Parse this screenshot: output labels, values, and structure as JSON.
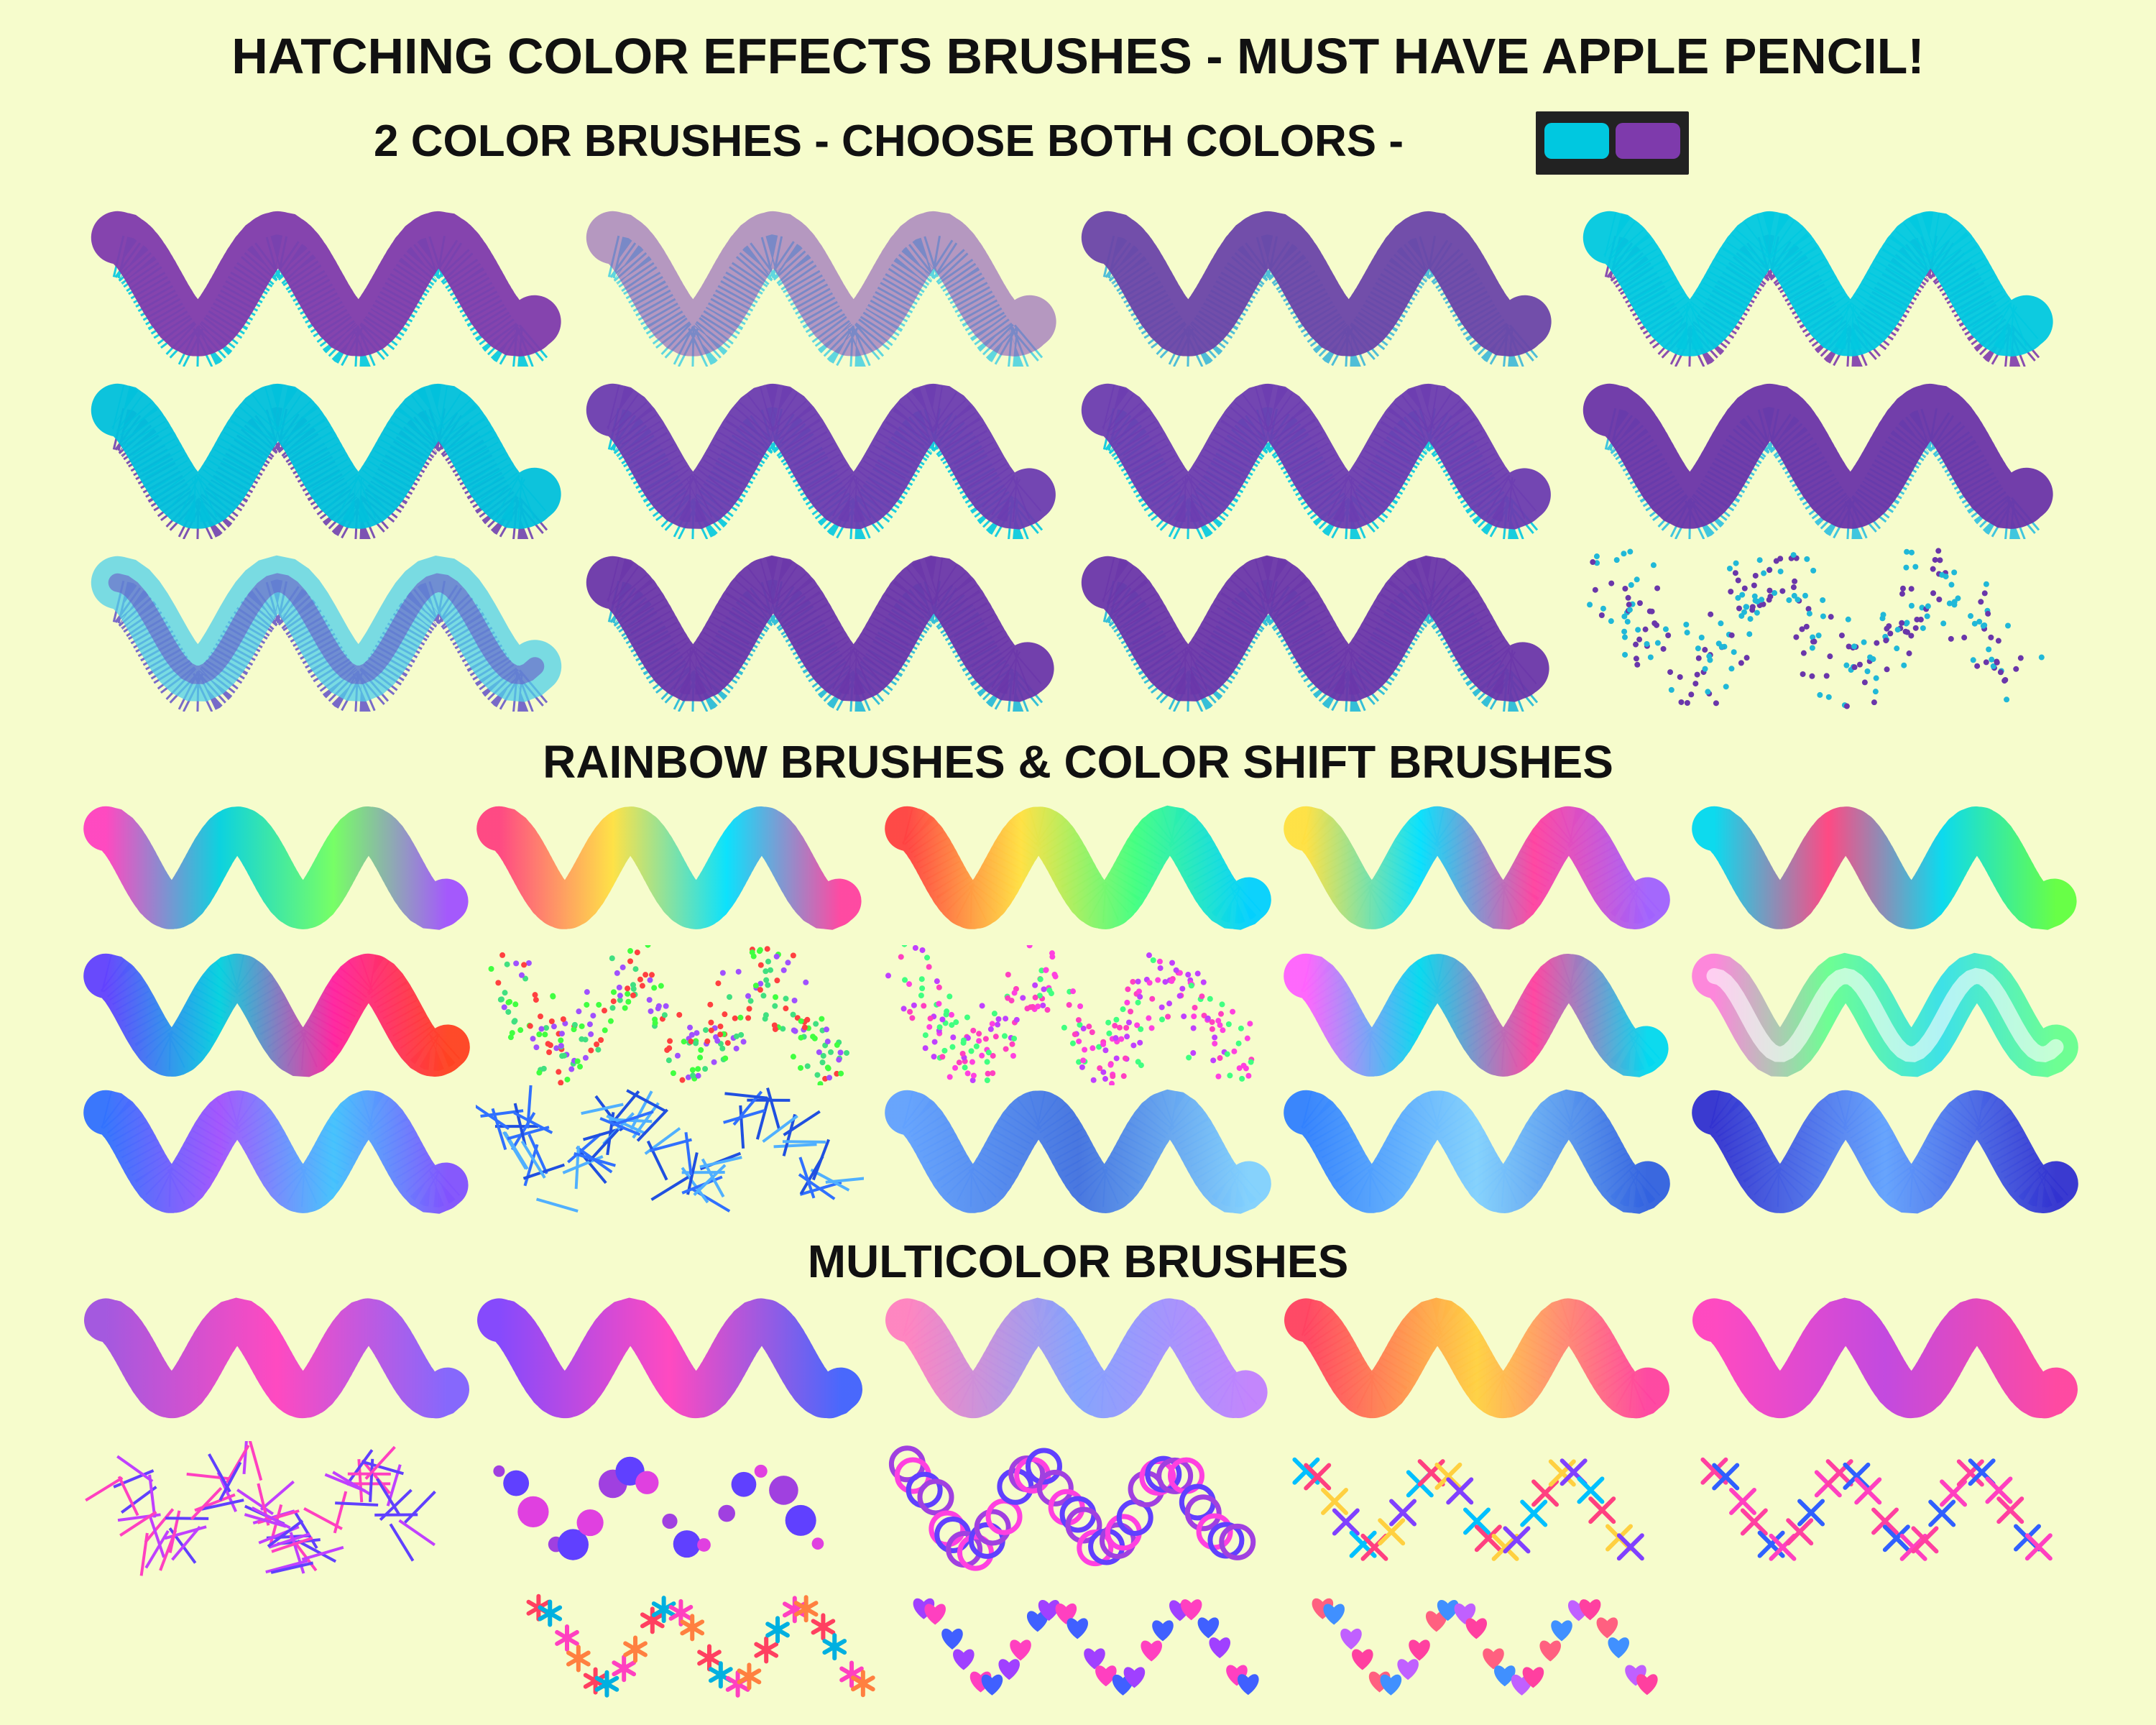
{
  "headings": {
    "main": "HATCHING COLOR EFFECTS BRUSHES - MUST HAVE APPLE PENCIL!",
    "two_color": "2 COLOR BRUSHES - CHOOSE BOTH COLORS -",
    "rainbow": "RAINBOW BRUSHES & COLOR SHIFT BRUSHES",
    "multicolor": "MULTICOLOR BRUSHES"
  },
  "color_swatch": {
    "primary": "#00c8e0",
    "secondary": "#7e3aac"
  },
  "sections": {
    "two_color": {
      "brushes": [
        {
          "style": "hatch",
          "colors": [
            "#7e3aac",
            "#00c8e0"
          ]
        },
        {
          "style": "hatch-light",
          "colors": [
            "#8a55b8",
            "#4fd3e0"
          ]
        },
        {
          "style": "hatch",
          "colors": [
            "#6a45a8",
            "#3db7d8"
          ]
        },
        {
          "style": "sketch",
          "colors": [
            "#00c8e0",
            "#7e3aac"
          ]
        },
        {
          "style": "sketch",
          "colors": [
            "#00c0dc",
            "#7040b0"
          ]
        },
        {
          "style": "dense",
          "colors": [
            "#6b3cb0",
            "#00c8e0"
          ]
        },
        {
          "style": "dense",
          "colors": [
            "#6b3cb0",
            "#00c8e0"
          ]
        },
        {
          "style": "hatch",
          "colors": [
            "#6a34a8",
            "#2cc0e0"
          ]
        },
        {
          "style": "soft",
          "colors": [
            "#4fd0ea",
            "#6a5ac8"
          ]
        },
        {
          "style": "cross",
          "colors": [
            "#6a36aa",
            "#20b8d8"
          ]
        },
        {
          "style": "cross",
          "colors": [
            "#6a36aa",
            "#20b8d8"
          ]
        },
        {
          "style": "dots",
          "colors": [
            "#6a36aa",
            "#20b8d8"
          ]
        }
      ]
    },
    "rainbow": {
      "brushes": [
        {
          "style": "hatch",
          "colors": [
            "#ff40c0",
            "#00d0e0",
            "#70ff60",
            "#a050ff"
          ]
        },
        {
          "style": "hatch",
          "colors": [
            "#ff4080",
            "#ffe040",
            "#00e0ff",
            "#ff40a0"
          ]
        },
        {
          "style": "cross",
          "colors": [
            "#ff4040",
            "#ffe040",
            "#40ff80",
            "#00d0ff"
          ]
        },
        {
          "style": "dense",
          "colors": [
            "#ffe040",
            "#00e0ff",
            "#ff40a0",
            "#a060ff"
          ]
        },
        {
          "style": "hatch",
          "colors": [
            "#00d8f0",
            "#ff4080",
            "#00d8f0",
            "#60ff40"
          ]
        },
        {
          "style": "dense",
          "colors": [
            "#6040ff",
            "#00d0e0",
            "#ff20a0",
            "#ff4020"
          ]
        },
        {
          "style": "dots",
          "colors": [
            "#ff4040",
            "#40e080",
            "#a050ff",
            "#40ff40"
          ]
        },
        {
          "style": "dots-dense",
          "colors": [
            "#ff40c0",
            "#40ff80",
            "#ff40e0",
            "#c040ff"
          ]
        },
        {
          "style": "sketch",
          "colors": [
            "#ff60ff",
            "#00d8f0",
            "#ff40a0",
            "#00d8f0"
          ]
        },
        {
          "style": "soft",
          "colors": [
            "#ff60e0",
            "#40ff80",
            "#00d8f0",
            "#40ff80"
          ]
        },
        {
          "style": "sketch",
          "colors": [
            "#3070ff",
            "#a050ff",
            "#40c0ff",
            "#8050ff"
          ]
        },
        {
          "style": "lines",
          "colors": [
            "#2050e0",
            "#50b0ff",
            "#3070ff"
          ]
        },
        {
          "style": "cross",
          "colors": [
            "#60a0ff",
            "#4070e0",
            "#80d0ff"
          ]
        },
        {
          "style": "cross",
          "colors": [
            "#3080ff",
            "#80d0ff",
            "#3060e0"
          ]
        },
        {
          "style": "dense",
          "colors": [
            "#3030d0",
            "#60a0ff",
            "#3030d0"
          ]
        }
      ]
    },
    "multicolor": {
      "brushes": [
        {
          "style": "hatch",
          "colors": [
            "#a050e0",
            "#ff40c0",
            "#8060ff"
          ]
        },
        {
          "style": "hatch",
          "colors": [
            "#8040ff",
            "#ff40c0",
            "#4060ff"
          ]
        },
        {
          "style": "cross",
          "colors": [
            "#ff80c0",
            "#80a0ff",
            "#c080ff"
          ]
        },
        {
          "style": "sketch",
          "colors": [
            "#ff4060",
            "#ffd040",
            "#ff40a0"
          ]
        },
        {
          "style": "hatch",
          "colors": [
            "#ff40c0",
            "#c040e0",
            "#ff40a0"
          ]
        },
        {
          "style": "lines",
          "colors": [
            "#ff40c0",
            "#6040ff",
            "#c040ff"
          ]
        },
        {
          "style": "circles-filled",
          "colors": [
            "#a040e0",
            "#6040ff",
            "#e040e0"
          ]
        },
        {
          "style": "rings",
          "colors": [
            "#a040e0",
            "#ff40e0",
            "#6040ff"
          ]
        },
        {
          "style": "crosses",
          "colors": [
            "#00c0ff",
            "#ff4080",
            "#ffd040",
            "#8040ff"
          ]
        },
        {
          "style": "crosses",
          "colors": [
            "#ff40a0",
            "#3060ff",
            "#ff40c0"
          ]
        },
        {
          "style": "stars",
          "colors": [
            "#ff4060",
            "#00b0e0",
            "#ff40c0",
            "#ff8040"
          ]
        },
        {
          "style": "hearts",
          "colors": [
            "#a040ff",
            "#ff40c0",
            "#4060ff"
          ]
        },
        {
          "style": "hearts",
          "colors": [
            "#ff6080",
            "#4090ff",
            "#c060ff",
            "#ff40a0"
          ]
        }
      ]
    }
  }
}
